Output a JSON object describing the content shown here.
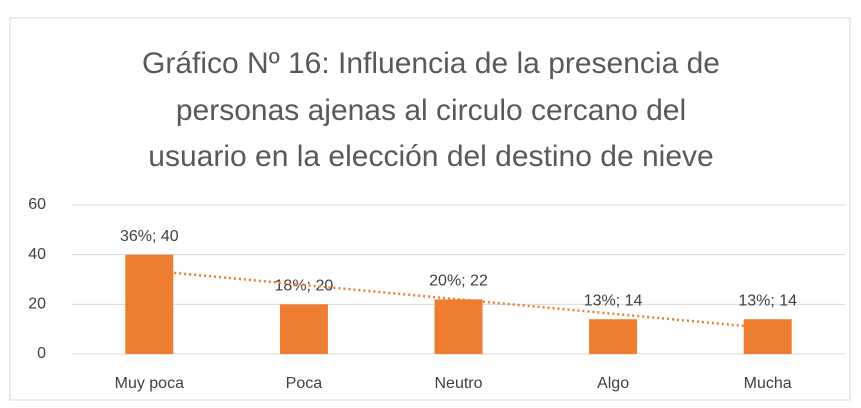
{
  "chart_data": {
    "type": "bar",
    "title": [
      "Gráfico Nº 16: Influencia de la presencia de",
      "personas ajenas al circulo cercano del",
      "usuario en la elección del destino de nieve"
    ],
    "categories": [
      "Muy poca",
      "Poca",
      "Neutro",
      "Algo",
      "Mucha"
    ],
    "values": [
      40,
      20,
      22,
      14,
      14
    ],
    "value_labels": [
      "36%; 40",
      "18%; 20",
      "20%; 22",
      "13%; 14",
      "13%; 14"
    ],
    "color": "#ed7d31",
    "trendline": "linear",
    "ylim": [
      0,
      60
    ],
    "yticks": [
      0,
      20,
      40,
      60
    ],
    "grid": true
  }
}
